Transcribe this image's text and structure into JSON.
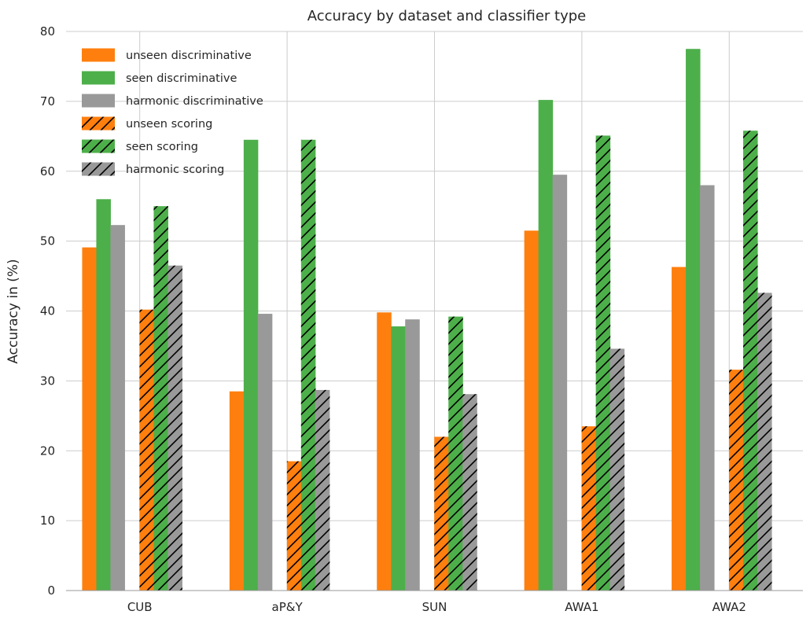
{
  "chart_data": {
    "type": "bar",
    "title": "Accuracy by dataset and classifier type",
    "ylabel": "Accuracy in (%)",
    "xlabel": "",
    "ylim": [
      0,
      80
    ],
    "yticks": [
      0,
      10,
      20,
      30,
      40,
      50,
      60,
      70,
      80
    ],
    "grid": true,
    "legend_position": "top-left",
    "categories": [
      "CUB",
      "aP&Y",
      "SUN",
      "AWA1",
      "AWA2"
    ],
    "series": [
      {
        "name": "unseen discriminative",
        "color": "#ff7f0e",
        "hatched": false,
        "values": [
          49.1,
          28.5,
          39.8,
          51.5,
          46.3
        ]
      },
      {
        "name": "seen discriminative",
        "color": "#4daf4a",
        "hatched": false,
        "values": [
          56.0,
          64.5,
          37.8,
          70.2,
          77.5
        ]
      },
      {
        "name": "harmonic discriminative",
        "color": "#999999",
        "hatched": false,
        "values": [
          52.3,
          39.6,
          38.8,
          59.5,
          58.0
        ]
      },
      {
        "name": "unseen scoring",
        "color": "#ff7f0e",
        "hatched": true,
        "values": [
          40.2,
          18.5,
          22.0,
          23.5,
          31.6
        ]
      },
      {
        "name": "seen scoring",
        "color": "#4daf4a",
        "hatched": true,
        "values": [
          55.0,
          64.5,
          39.2,
          65.1,
          65.8
        ]
      },
      {
        "name": "harmonic scoring",
        "color": "#999999",
        "hatched": true,
        "values": [
          46.5,
          28.7,
          28.1,
          34.6,
          42.6
        ]
      }
    ]
  }
}
